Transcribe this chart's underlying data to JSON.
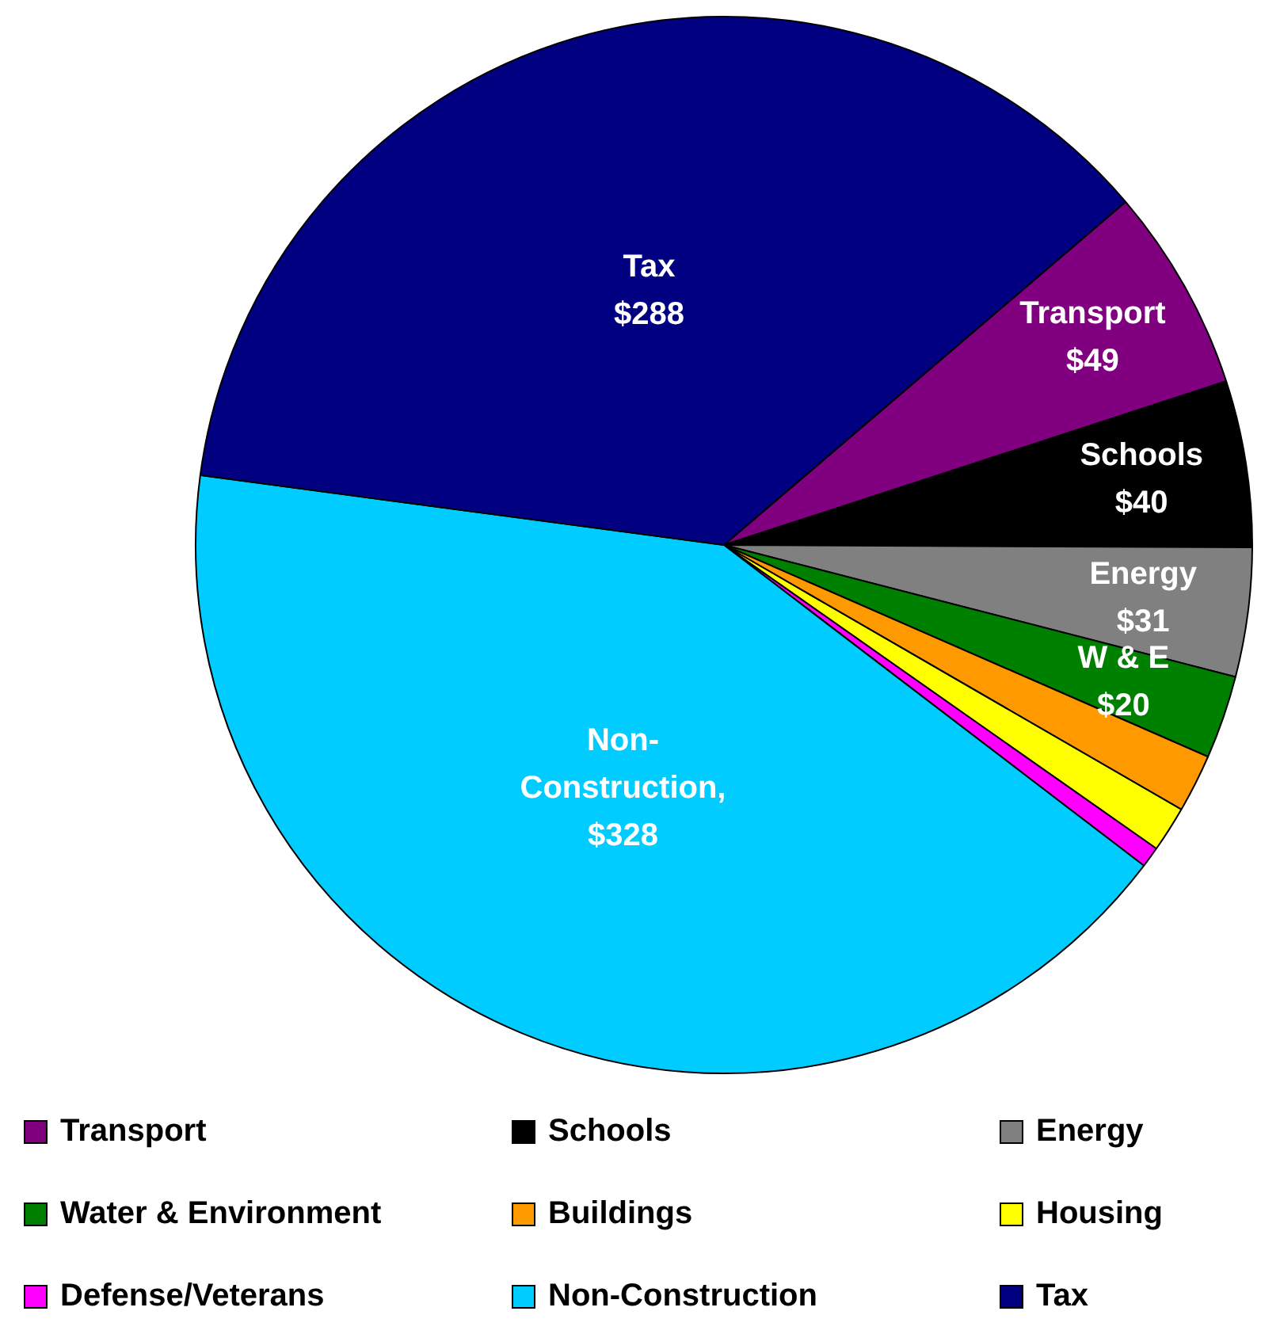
{
  "chart_data": {
    "type": "pie",
    "categories": [
      "Transport",
      "Schools",
      "Energy",
      "Water & Environment",
      "Buildings",
      "Housing",
      "Defense/Veterans",
      "Non-Construction",
      "Tax"
    ],
    "values": [
      49,
      40,
      31,
      20,
      14,
      11,
      5,
      328,
      288
    ],
    "colors": [
      "#800080",
      "#000000",
      "#808080",
      "#008000",
      "#ff9900",
      "#ffff00",
      "#ff00ff",
      "#00ccff",
      "#000080"
    ],
    "value_labels": [
      "Transport\n$49",
      "Schools\n$40",
      "Energy\n$31",
      "W & E\n$20",
      null,
      null,
      null,
      "Non-\nConstruction,\n$328",
      "Tax\n$288"
    ],
    "legend": "bottom"
  }
}
